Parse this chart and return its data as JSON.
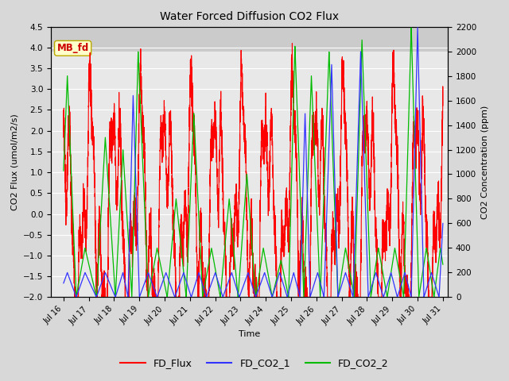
{
  "title": "Water Forced Diffusion CO2 Flux",
  "xlabel": "Time",
  "ylabel_left": "CO2 Flux (umol/m2/s)",
  "ylabel_right": "CO2 Concentration (ppm)",
  "annotation_text": "MB_fd",
  "annotation_bg": "#ffffcc",
  "annotation_border": "#bbaa00",
  "annotation_color": "#cc0000",
  "xlim_start": 15.5,
  "xlim_end": 31.2,
  "ylim_left": [
    -2.0,
    4.5
  ],
  "ylim_right": [
    0,
    2200
  ],
  "xtick_labels": [
    "Jul 16",
    "Jul 17",
    "Jul 18",
    "Jul 19",
    "Jul 20",
    "Jul 21",
    "Jul 22",
    "Jul 23",
    "Jul 24",
    "Jul 25",
    "Jul 26",
    "Jul 27",
    "Jul 28",
    "Jul 29",
    "Jul 30",
    "Jul 31"
  ],
  "xtick_positions": [
    16,
    17,
    18,
    19,
    20,
    21,
    22,
    23,
    24,
    25,
    26,
    27,
    28,
    29,
    30,
    31
  ],
  "ytick_left": [
    -2.0,
    -1.5,
    -1.0,
    -0.5,
    0.0,
    0.5,
    1.0,
    1.5,
    2.0,
    2.5,
    3.0,
    3.5,
    4.0,
    4.5
  ],
  "ytick_right": [
    0,
    200,
    400,
    600,
    800,
    1000,
    1200,
    1400,
    1600,
    1800,
    2000,
    2200
  ],
  "shaded_band_ylim": [
    3.9,
    4.5
  ],
  "line_fd_flux_color": "#ff0000",
  "line_co2_1_color": "#3333ff",
  "line_co2_2_color": "#00bb00",
  "legend_labels": [
    "FD_Flux",
    "FD_CO2_1",
    "FD_CO2_2"
  ],
  "legend_colors": [
    "#ff0000",
    "#3333ff",
    "#00bb00"
  ],
  "background_color": "#d8d8d8",
  "plot_bg_color": "#e8e8e8",
  "grid_color": "#ffffff",
  "figsize": [
    6.4,
    4.8
  ],
  "dpi": 100
}
